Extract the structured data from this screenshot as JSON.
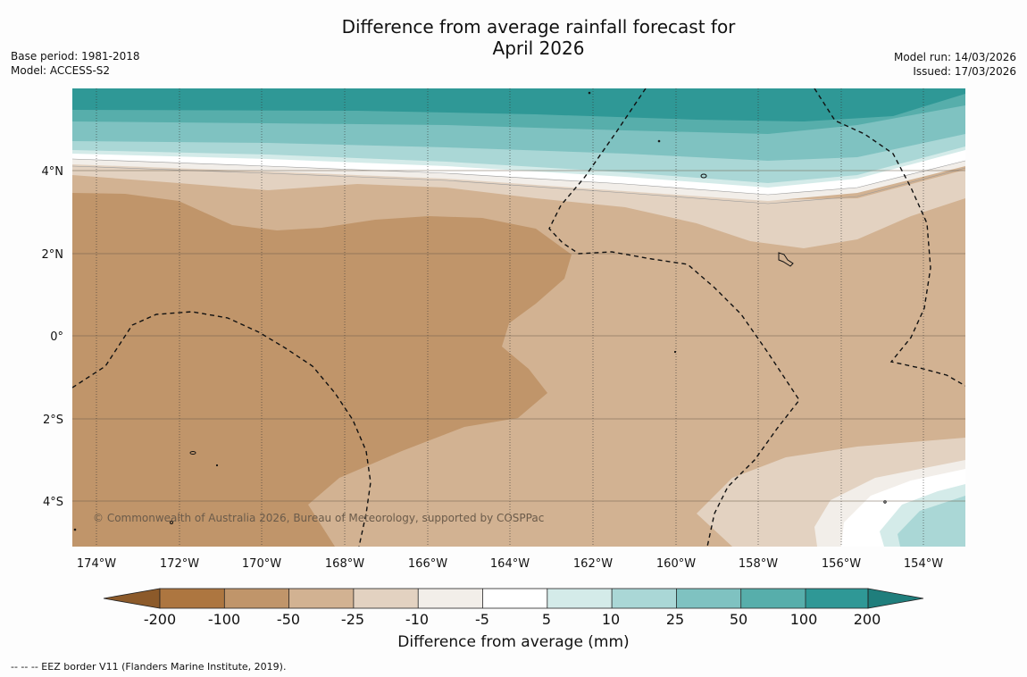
{
  "title": {
    "line1": "Difference from average rainfall forecast for",
    "line2": "April 2026"
  },
  "meta_left": {
    "base_period": "Base period: 1981-2018",
    "model": "Model: ACCESS-S2"
  },
  "meta_right": {
    "model_run": "Model run: 14/03/2026",
    "issued": "Issued: 17/03/2026"
  },
  "map": {
    "lon_labels": [
      "174°W",
      "172°W",
      "170°W",
      "168°W",
      "166°W",
      "164°W",
      "162°W",
      "160°W",
      "158°W",
      "156°W",
      "154°W"
    ],
    "lat_labels": [
      "4°N",
      "2°N",
      "0°",
      "2°S",
      "4°S"
    ],
    "copyright": "© Commonwealth of Australia 2026, Bureau of Meteorology, supported by COSPPac"
  },
  "colorbar": {
    "labels": [
      "-200",
      "-100",
      "-50",
      "-25",
      "-10",
      "-5",
      "5",
      "10",
      "25",
      "50",
      "100",
      "200"
    ],
    "colors": [
      "#ad7640",
      "#c0956a",
      "#d2b292",
      "#e3d2c1",
      "#f2eee9",
      "#ffffff",
      "#d4ebe9",
      "#aad7d6",
      "#7fc2c1",
      "#57aeab",
      "#2f9896"
    ],
    "extend_low_color": "#8c5a2a",
    "extend_high_color": "#1f7e7c",
    "title": "Difference from average (mm)"
  },
  "legend_footer": "--  --  -- EEZ border V11 (Flanders Marine Institute, 2019)."
}
